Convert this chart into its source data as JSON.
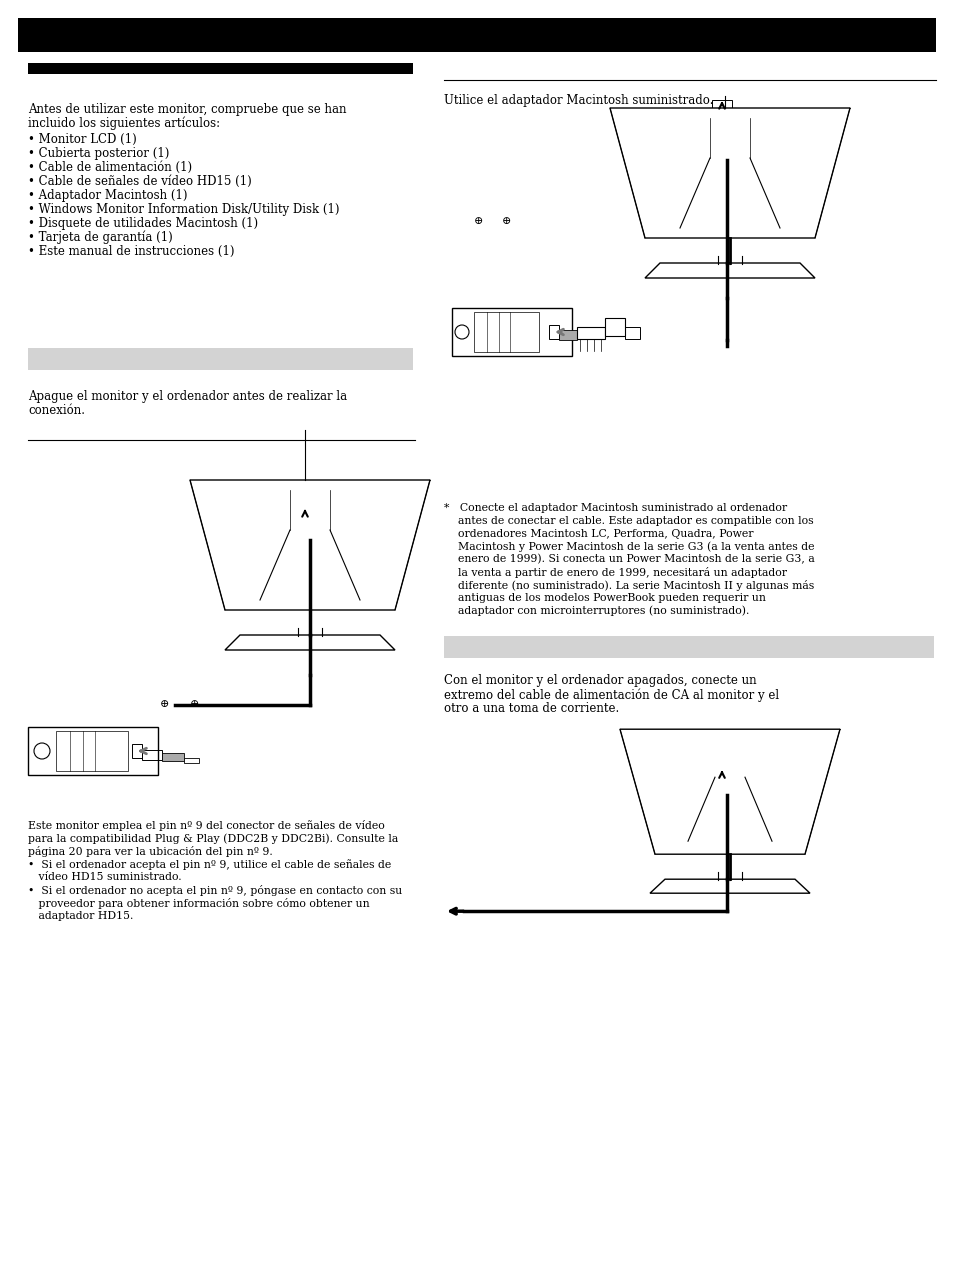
{
  "page_bg": "#ffffff",
  "header_bar_color": "#000000",
  "subheader_bar_color": "#000000",
  "gray_box_color": "#d3d3d3",
  "text_color": "#000000",
  "intro_text_line1": "Antes de utilizar este monitor, compruebe que se han",
  "intro_text_line2": "incluido los siguientes artículos:",
  "bullet_items": [
    "Monitor LCD (1)",
    "Cubierta posterior (1)",
    "Cable de alimentación (1)",
    "Cable de señales de vídeo HD15 (1)",
    "Adaptador Macintosh (1)",
    "Windows Monitor Information Disk/Utility Disk (1)",
    "Disquete de utilidades Macintosh (1)",
    "Tarjeta de garantía (1)",
    "Este manual de instrucciones (1)"
  ],
  "note_step1_line1": "Apague el monitor y el ordenador antes de realizar la",
  "note_step1_line2": "conexión.",
  "macintosh_label": "Utilice el adaptador Macintosh suministrado.",
  "footnote_lines": [
    "Este monitor emplea el pin nº 9 del conector de señales de vídeo",
    "para la compatibilidad Plug & Play (DDC2B y DDC2Bi). Consulte la",
    "página 20 para ver la ubicación del pin nº 9.",
    "•  Si el ordenador acepta el pin nº 9, utilice el cable de señales de",
    "   vídeo HD15 suministrado.",
    "•  Si el ordenador no acepta el pin nº 9, póngase en contacto con su",
    "   proveedor para obtener información sobre cómo obtener un",
    "   adaptador HD15."
  ],
  "macintosh_note_lines": [
    "*   Conecte el adaptador Macintosh suministrado al ordenador",
    "    antes de conectar el cable. Este adaptador es compatible con los",
    "    ordenadores Macintosh LC, Performa, Quadra, Power",
    "    Macintosh y Power Macintosh de la serie G3 (a la venta antes de",
    "    enero de 1999). Si conecta un Power Macintosh de la serie G3, a",
    "    la venta a partir de enero de 1999, necesitará un adaptador",
    "    diferente (no suministrado). La serie Macintosh II y algunas más",
    "    antiguas de los modelos PowerBook pueden requerir un",
    "    adaptador con microinterruptores (no suministrado)."
  ],
  "step2_line1": "Con el monitor y el ordenador apagados, conecte un",
  "step2_line2": "extremo del cable de alimentación de CA al monitor y el",
  "step2_line3": "otro a una toma de corriente."
}
